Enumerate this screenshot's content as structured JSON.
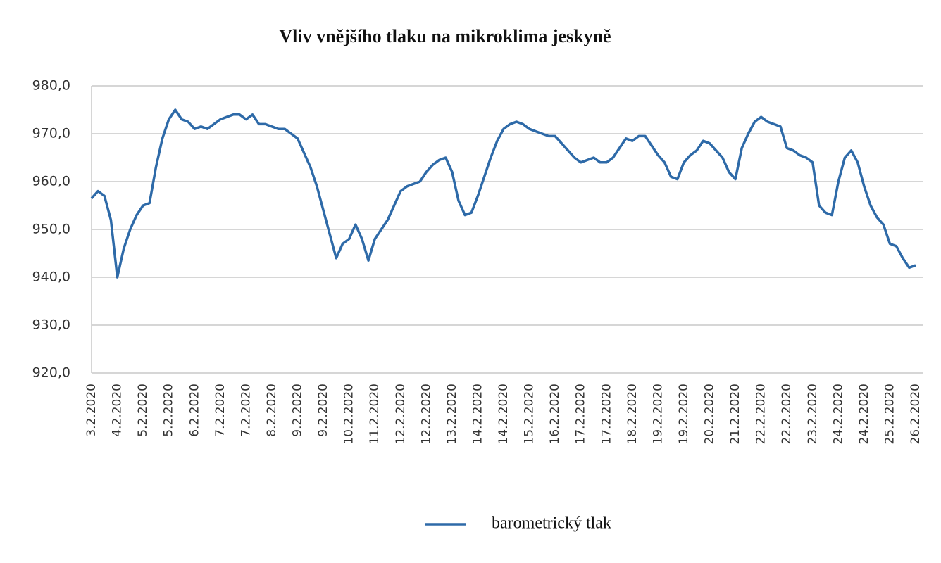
{
  "chart_data": {
    "type": "line",
    "title": "Vliv vnějšího tlaku na mikroklima jeskyně",
    "categories": [
      "3.2.2020",
      null,
      null,
      null,
      "4.2.2020",
      null,
      null,
      null,
      "5.2.2020",
      null,
      null,
      null,
      "5.2.2020",
      null,
      null,
      null,
      "6.2.2020",
      null,
      null,
      null,
      "7.2.2020",
      null,
      null,
      null,
      "7.2.2020",
      null,
      null,
      null,
      "8.2.2020",
      null,
      null,
      null,
      "9.2.2020",
      null,
      null,
      null,
      "9.2.2020",
      null,
      null,
      null,
      "10.2.2020",
      null,
      null,
      null,
      "11.2.2020",
      null,
      null,
      null,
      "12.2.2020",
      null,
      null,
      null,
      "12.2.2020",
      null,
      null,
      null,
      "13.2.2020",
      null,
      null,
      null,
      "14.2.2020",
      null,
      null,
      null,
      "14.2.2020",
      null,
      null,
      null,
      "15.2.2020",
      null,
      null,
      null,
      "16.2.2020",
      null,
      null,
      null,
      "17.2.2020",
      null,
      null,
      null,
      "17.2.2020",
      null,
      null,
      null,
      "18.2.2020",
      null,
      null,
      null,
      "19.2.2020",
      null,
      null,
      null,
      "19.2.2020",
      null,
      null,
      null,
      "20.2.2020",
      null,
      null,
      null,
      "21.2.2020",
      null,
      null,
      null,
      "22.2.2020",
      null,
      null,
      null,
      "22.2.2020",
      null,
      null,
      null,
      "23.2.2020",
      null,
      null,
      null,
      "24.2.2020",
      null,
      null,
      null,
      "24.2.2020",
      null,
      null,
      null,
      "25.2.2020",
      null,
      null,
      null,
      "26.2.2020"
    ],
    "series": [
      {
        "name": "barometrický tlak",
        "color": "#2e6aa8",
        "values": [
          956.5,
          958,
          957,
          952,
          940,
          946,
          950,
          953,
          955,
          955.5,
          963,
          969,
          973,
          975,
          973,
          972.5,
          971,
          971.5,
          971,
          972,
          973,
          973.5,
          974,
          974,
          973,
          974,
          972,
          972,
          971.5,
          971,
          971,
          970,
          969,
          966,
          963,
          959,
          954,
          949,
          944,
          947,
          948,
          951,
          948,
          943.5,
          948,
          950,
          952,
          955,
          958,
          959,
          959.5,
          960,
          962,
          963.5,
          964.5,
          965,
          962,
          956,
          953,
          953.5,
          957,
          961,
          965,
          968.5,
          971,
          972,
          972.5,
          972,
          971,
          970.5,
          970,
          969.5,
          969.5,
          968,
          966.5,
          965,
          964,
          964.5,
          965,
          964,
          964,
          965,
          967,
          969,
          968.5,
          969.5,
          969.5,
          967.5,
          965.5,
          964,
          961,
          960.5,
          964,
          965.5,
          966.5,
          968.5,
          968,
          966.5,
          965,
          962,
          960.5,
          967,
          970,
          972.5,
          973.5,
          972.5,
          972,
          971.5,
          967,
          966.5,
          965.5,
          965,
          964,
          955,
          953.5,
          953,
          960,
          965,
          966.5,
          964,
          959,
          955,
          952.5,
          951,
          947,
          946.5,
          944,
          942,
          942.5
        ]
      }
    ],
    "ylim": [
      920,
      980
    ],
    "yticks": [
      {
        "value": 920,
        "label": "920,0"
      },
      {
        "value": 930,
        "label": "930,0"
      },
      {
        "value": 940,
        "label": "940,0"
      },
      {
        "value": 950,
        "label": "950,0"
      },
      {
        "value": 960,
        "label": "960,0"
      },
      {
        "value": 970,
        "label": "970,0"
      },
      {
        "value": 980,
        "label": "980,0"
      }
    ],
    "grid": true,
    "legend": "bottom"
  }
}
